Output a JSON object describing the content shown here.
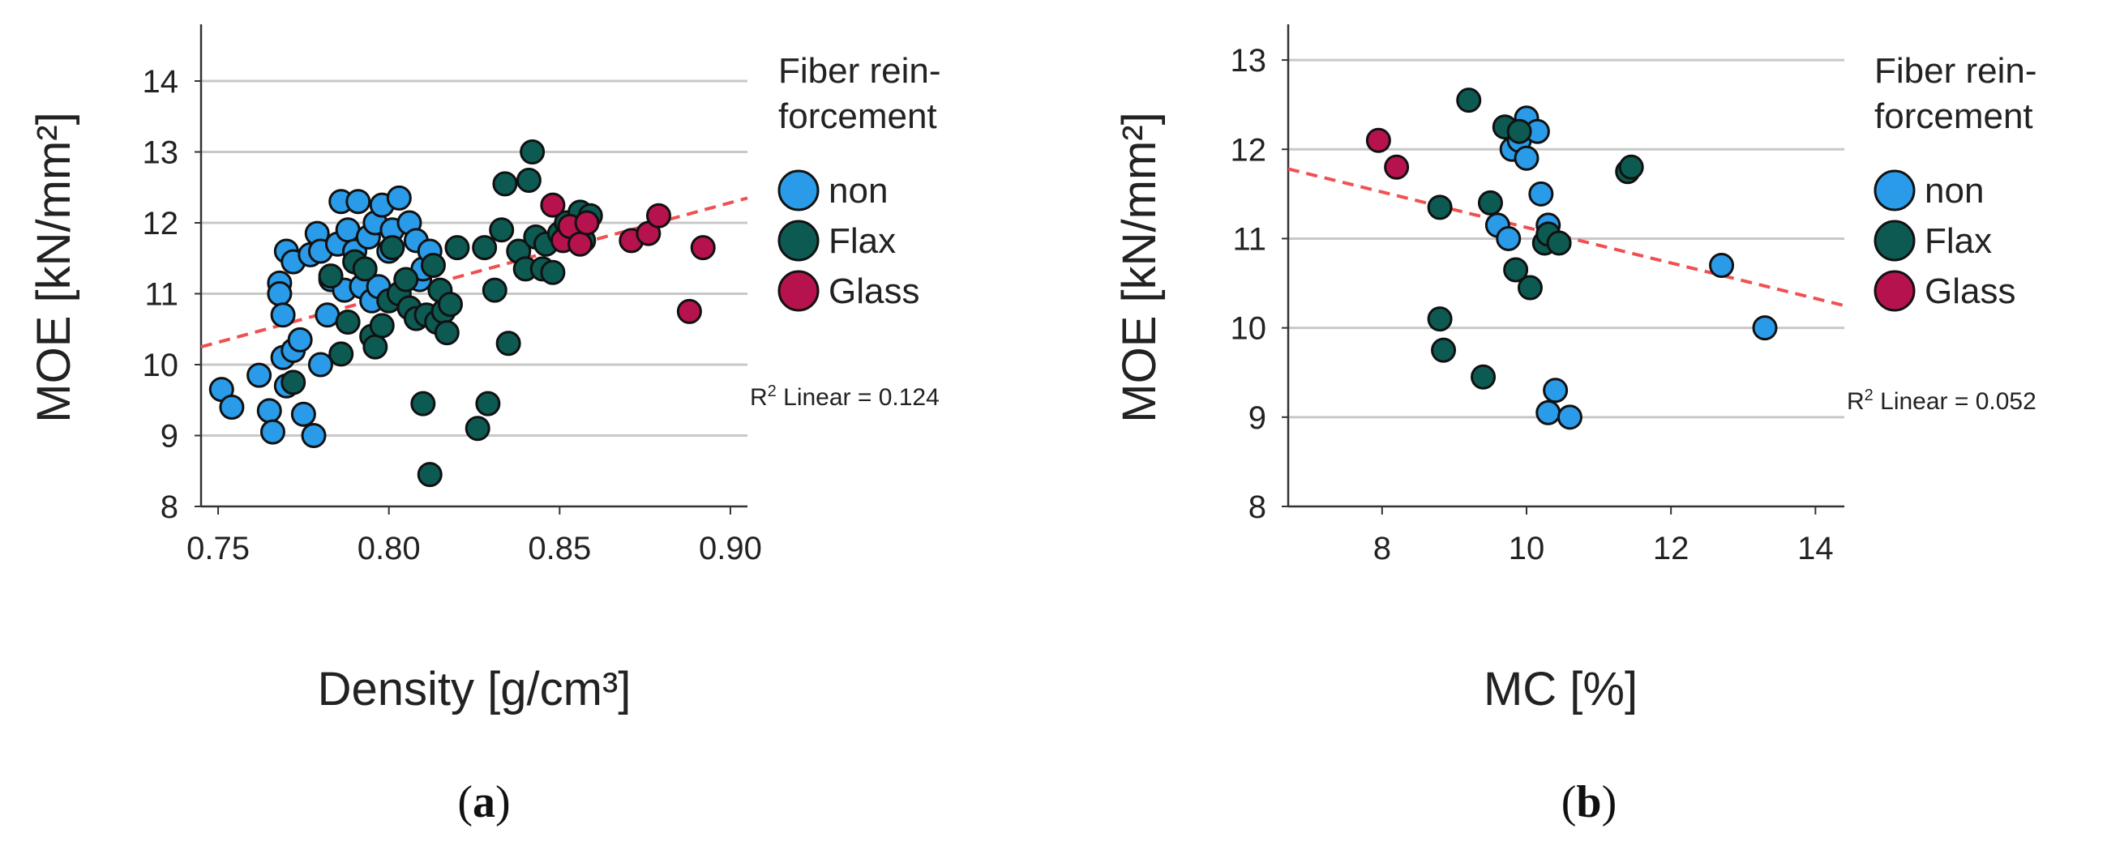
{
  "colors": {
    "non": "#2a9be8",
    "Flax": "#0d5a52",
    "Glass": "#b5124e",
    "fit": "#f05050",
    "grid": "#c8c8c8",
    "axis": "#333333"
  },
  "chart_data": [
    {
      "type": "scatter",
      "panel_label": "a",
      "xlabel": "Density [g/cm³]",
      "ylabel": "MOE [kN/mm²]",
      "xlim": [
        0.745,
        0.905
      ],
      "ylim": [
        8,
        14.8
      ],
      "xticks": [
        {
          "v": 0.75,
          "label": "0.75"
        },
        {
          "v": 0.8,
          "label": "0.80"
        },
        {
          "v": 0.85,
          "label": "0.85"
        },
        {
          "v": 0.9,
          "label": "0.90"
        }
      ],
      "yticks": [
        {
          "v": 8,
          "label": "8"
        },
        {
          "v": 9,
          "label": "9"
        },
        {
          "v": 10,
          "label": "10"
        },
        {
          "v": 11,
          "label": "11"
        },
        {
          "v": 12,
          "label": "12"
        },
        {
          "v": 13,
          "label": "13"
        },
        {
          "v": 14,
          "label": "14"
        }
      ],
      "legend_title_lines": [
        "Fiber rein-",
        "forcement"
      ],
      "r2_prefix": "R",
      "r2_sup": "2",
      "r2_text": " Linear = 0.124",
      "fit_line": {
        "x": [
          0.745,
          0.905
        ],
        "y": [
          10.25,
          12.35
        ]
      },
      "series": [
        {
          "name": "non",
          "points": [
            [
              0.751,
              9.65
            ],
            [
              0.754,
              9.4
            ],
            [
              0.762,
              9.85
            ],
            [
              0.765,
              9.35
            ],
            [
              0.766,
              9.05
            ],
            [
              0.768,
              11.15
            ],
            [
              0.768,
              11.0
            ],
            [
              0.769,
              10.7
            ],
            [
              0.769,
              10.1
            ],
            [
              0.77,
              9.7
            ],
            [
              0.77,
              11.6
            ],
            [
              0.772,
              11.45
            ],
            [
              0.772,
              10.2
            ],
            [
              0.774,
              10.35
            ],
            [
              0.775,
              9.3
            ],
            [
              0.777,
              11.55
            ],
            [
              0.778,
              9.0
            ],
            [
              0.779,
              11.85
            ],
            [
              0.78,
              10.0
            ],
            [
              0.78,
              11.6
            ],
            [
              0.782,
              10.7
            ],
            [
              0.783,
              11.2
            ],
            [
              0.785,
              11.7
            ],
            [
              0.786,
              12.3
            ],
            [
              0.787,
              11.05
            ],
            [
              0.788,
              11.9
            ],
            [
              0.79,
              11.6
            ],
            [
              0.791,
              12.3
            ],
            [
              0.792,
              11.1
            ],
            [
              0.794,
              11.8
            ],
            [
              0.795,
              10.9
            ],
            [
              0.796,
              12.0
            ],
            [
              0.797,
              11.1
            ],
            [
              0.798,
              12.25
            ],
            [
              0.8,
              11.6
            ],
            [
              0.801,
              11.9
            ],
            [
              0.803,
              12.35
            ],
            [
              0.806,
              12.0
            ],
            [
              0.808,
              11.75
            ],
            [
              0.809,
              11.2
            ],
            [
              0.81,
              11.35
            ],
            [
              0.812,
              11.6
            ]
          ]
        },
        {
          "name": "Flax",
          "points": [
            [
              0.772,
              9.75
            ],
            [
              0.783,
              11.25
            ],
            [
              0.786,
              10.15
            ],
            [
              0.788,
              10.6
            ],
            [
              0.79,
              11.45
            ],
            [
              0.793,
              11.35
            ],
            [
              0.795,
              10.4
            ],
            [
              0.796,
              10.25
            ],
            [
              0.798,
              10.55
            ],
            [
              0.8,
              10.9
            ],
            [
              0.801,
              11.65
            ],
            [
              0.803,
              11.0
            ],
            [
              0.805,
              11.2
            ],
            [
              0.806,
              10.8
            ],
            [
              0.808,
              10.65
            ],
            [
              0.81,
              9.45
            ],
            [
              0.811,
              10.7
            ],
            [
              0.812,
              8.45
            ],
            [
              0.813,
              11.4
            ],
            [
              0.814,
              10.6
            ],
            [
              0.815,
              11.05
            ],
            [
              0.816,
              10.75
            ],
            [
              0.817,
              10.45
            ],
            [
              0.818,
              10.85
            ],
            [
              0.82,
              11.65
            ],
            [
              0.826,
              9.1
            ],
            [
              0.828,
              11.65
            ],
            [
              0.829,
              9.45
            ],
            [
              0.831,
              11.05
            ],
            [
              0.833,
              11.9
            ],
            [
              0.834,
              12.55
            ],
            [
              0.835,
              10.3
            ],
            [
              0.838,
              11.6
            ],
            [
              0.84,
              11.35
            ],
            [
              0.841,
              12.6
            ],
            [
              0.842,
              13.0
            ],
            [
              0.843,
              11.8
            ],
            [
              0.845,
              11.35
            ],
            [
              0.846,
              11.7
            ],
            [
              0.848,
              11.3
            ],
            [
              0.85,
              11.85
            ],
            [
              0.852,
              12.0
            ],
            [
              0.854,
              11.9
            ],
            [
              0.856,
              12.15
            ],
            [
              0.857,
              11.75
            ],
            [
              0.859,
              12.1
            ]
          ]
        },
        {
          "name": "Glass",
          "points": [
            [
              0.848,
              12.25
            ],
            [
              0.851,
              11.75
            ],
            [
              0.853,
              11.95
            ],
            [
              0.856,
              11.7
            ],
            [
              0.858,
              12.0
            ],
            [
              0.871,
              11.75
            ],
            [
              0.876,
              11.85
            ],
            [
              0.879,
              12.1
            ],
            [
              0.888,
              10.75
            ],
            [
              0.892,
              11.65
            ]
          ]
        }
      ]
    },
    {
      "type": "scatter",
      "panel_label": "b",
      "xlabel": "MC [%]",
      "ylabel": "MOE [kN/mm²]",
      "xlim": [
        6.7,
        14.4
      ],
      "ylim": [
        8,
        13.4
      ],
      "xticks": [
        {
          "v": 8,
          "label": "8"
        },
        {
          "v": 10,
          "label": "10"
        },
        {
          "v": 12,
          "label": "12"
        },
        {
          "v": 14,
          "label": "14"
        }
      ],
      "yticks": [
        {
          "v": 8,
          "label": "8"
        },
        {
          "v": 9,
          "label": "9"
        },
        {
          "v": 10,
          "label": "10"
        },
        {
          "v": 11,
          "label": "11"
        },
        {
          "v": 12,
          "label": "12"
        },
        {
          "v": 13,
          "label": "13"
        }
      ],
      "legend_title_lines": [
        "Fiber rein-",
        "forcement"
      ],
      "r2_prefix": "R",
      "r2_sup": "2",
      "r2_text": " Linear = 0.052",
      "fit_line": {
        "x": [
          6.7,
          14.4
        ],
        "y": [
          11.78,
          10.25
        ]
      },
      "series": [
        {
          "name": "non",
          "points": [
            [
              9.6,
              11.15
            ],
            [
              9.75,
              11.0
            ],
            [
              9.8,
              12.0
            ],
            [
              9.9,
              12.1
            ],
            [
              10.0,
              12.35
            ],
            [
              10.0,
              11.9
            ],
            [
              10.15,
              12.2
            ],
            [
              10.2,
              11.5
            ],
            [
              10.3,
              11.15
            ],
            [
              10.3,
              9.05
            ],
            [
              10.4,
              9.3
            ],
            [
              10.6,
              9.0
            ],
            [
              12.7,
              10.7
            ],
            [
              13.3,
              10.0
            ]
          ]
        },
        {
          "name": "Flax",
          "points": [
            [
              8.8,
              11.35
            ],
            [
              8.8,
              10.1
            ],
            [
              8.85,
              9.75
            ],
            [
              9.2,
              12.55
            ],
            [
              9.4,
              9.45
            ],
            [
              9.5,
              11.4
            ],
            [
              9.7,
              12.25
            ],
            [
              9.85,
              10.65
            ],
            [
              9.9,
              12.2
            ],
            [
              10.05,
              10.45
            ],
            [
              10.25,
              10.95
            ],
            [
              10.3,
              11.05
            ],
            [
              10.45,
              10.95
            ],
            [
              11.4,
              11.75
            ],
            [
              11.45,
              11.8
            ]
          ]
        },
        {
          "name": "Glass",
          "points": [
            [
              7.95,
              12.1
            ],
            [
              8.2,
              11.8
            ]
          ]
        }
      ]
    }
  ]
}
